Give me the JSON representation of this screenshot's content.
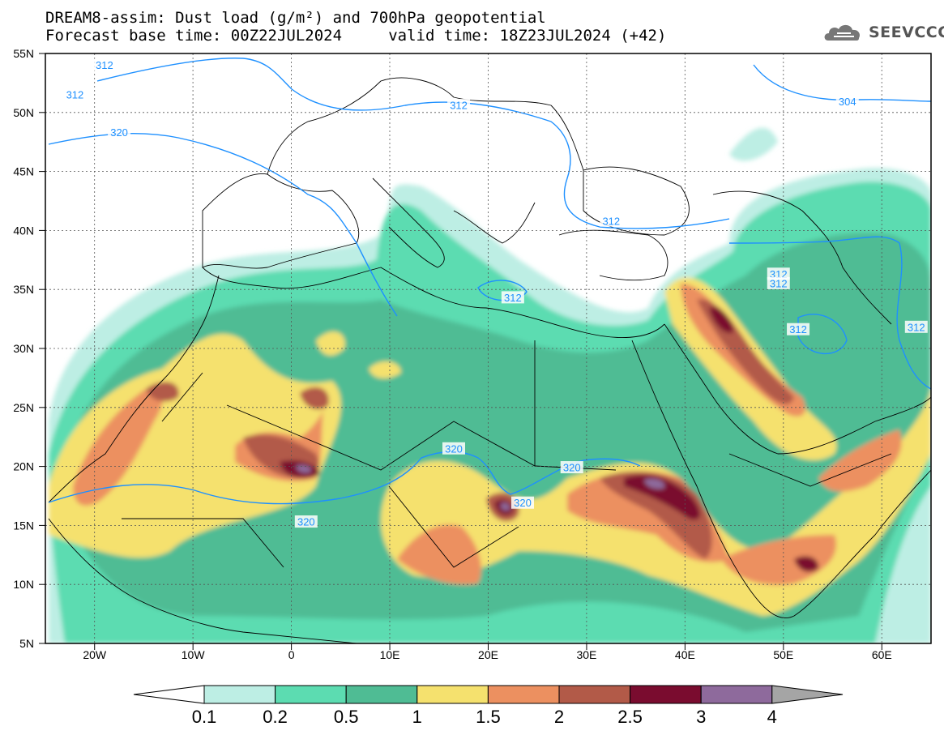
{
  "header": {
    "title_line1": "DREAM8-assim: Dust load (g/m²) and 700hPa geopotential",
    "title_line2": "Forecast base time: 00Z22JUL2024     valid time: 18Z23JUL2024 (+42)",
    "logo_text": "SEEVCCC"
  },
  "map": {
    "projection": "lat-lon",
    "lon_range": [
      -25,
      65
    ],
    "lat_range": [
      5,
      55
    ],
    "lat_labels": [
      "55N",
      "50N",
      "45N",
      "40N",
      "35N",
      "30N",
      "25N",
      "20N",
      "15N",
      "10N",
      "5N"
    ],
    "lon_labels": [
      "20W",
      "10W",
      "0",
      "10E",
      "20E",
      "30E",
      "40E",
      "50E",
      "60E"
    ],
    "gridlines": "dotted",
    "contour_color": "#1e90ff",
    "contour_labels": [
      {
        "text": "312",
        "lon": -22,
        "lat": 51.5
      },
      {
        "text": "312",
        "lon": -19,
        "lat": 54
      },
      {
        "text": "320",
        "lon": -17.5,
        "lat": 48.3
      },
      {
        "text": "312",
        "lon": 17,
        "lat": 50.6
      },
      {
        "text": "304",
        "lon": 56.5,
        "lat": 50.9
      },
      {
        "text": "312",
        "lon": 32.5,
        "lat": 40.8
      },
      {
        "text": "312",
        "lon": 22.5,
        "lat": 34.3
      },
      {
        "text": "312",
        "lon": 49.5,
        "lat": 36.3
      },
      {
        "text": "312",
        "lon": 49.5,
        "lat": 35.5
      },
      {
        "text": "312",
        "lon": 51.5,
        "lat": 31.6
      },
      {
        "text": "312",
        "lon": 63.5,
        "lat": 31.8
      },
      {
        "text": "320",
        "lon": 16.5,
        "lat": 21.5
      },
      {
        "text": "320",
        "lon": 28.5,
        "lat": 19.9
      },
      {
        "text": "320",
        "lon": 23.5,
        "lat": 16.9
      },
      {
        "text": "320",
        "lon": 1.5,
        "lat": 15.3
      }
    ]
  },
  "colorbar": {
    "labels": [
      "0.1",
      "0.2",
      "0.5",
      "1",
      "1.5",
      "2",
      "2.5",
      "3",
      "4"
    ],
    "colors": [
      "#bdeee4",
      "#5cdcb1",
      "#4fbc94",
      "#f5e16e",
      "#ec9060",
      "#b25a48",
      "#7a0c2f",
      "#8e6a9c",
      "#a5a5a5"
    ],
    "background": "#ffffff"
  },
  "dust_levels": [
    {
      "level": "0.1",
      "color": "#bdeee4"
    },
    {
      "level": "0.2",
      "color": "#5cdcb1"
    },
    {
      "level": "0.5",
      "color": "#4fbc94"
    },
    {
      "level": "1",
      "color": "#f5e16e"
    },
    {
      "level": "1.5",
      "color": "#ec9060"
    },
    {
      "level": "2",
      "color": "#b25a48"
    },
    {
      "level": "2.5",
      "color": "#7a0c2f"
    },
    {
      "level": "3",
      "color": "#8e6a9c"
    }
  ]
}
